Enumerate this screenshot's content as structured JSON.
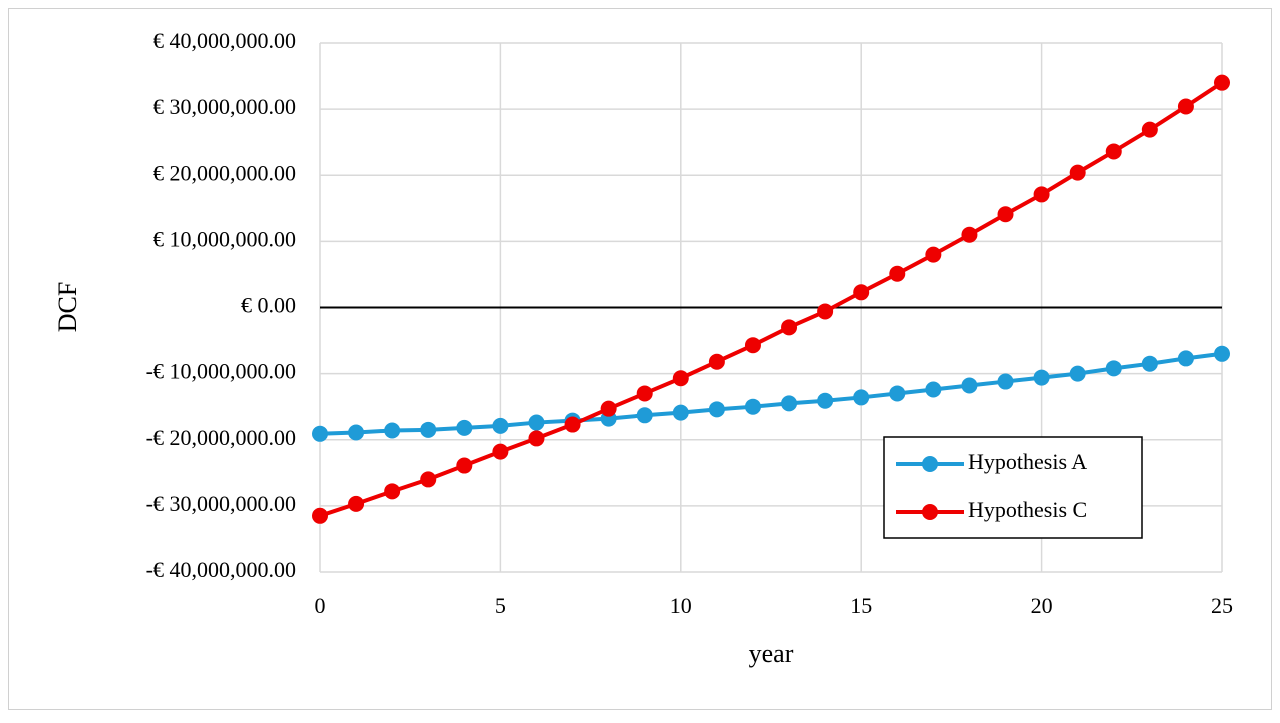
{
  "chart_data": {
    "type": "line",
    "y_label": "DCF",
    "x_label": "year",
    "x": [
      0,
      1,
      2,
      3,
      4,
      5,
      6,
      7,
      8,
      9,
      10,
      11,
      12,
      13,
      14,
      15,
      16,
      17,
      18,
      19,
      20,
      21,
      22,
      23,
      24,
      25
    ],
    "series": [
      {
        "name": "Hypothesis A",
        "color": "#1f9bd7",
        "values": [
          -19100000,
          -18900000,
          -18600000,
          -18500000,
          -18200000,
          -17900000,
          -17400000,
          -17100000,
          -16800000,
          -16300000,
          -15900000,
          -15400000,
          -15000000,
          -14500000,
          -14100000,
          -13600000,
          -13000000,
          -12400000,
          -11800000,
          -11200000,
          -10600000,
          -10000000,
          -9200000,
          -8500000,
          -7700000,
          -7000000
        ]
      },
      {
        "name": "Hypothesis C",
        "color": "#ee0000",
        "values": [
          -31500000,
          -29700000,
          -27800000,
          -26000000,
          -23900000,
          -21800000,
          -19800000,
          -17700000,
          -15300000,
          -13000000,
          -10700000,
          -8200000,
          -5700000,
          -3000000,
          -600000,
          2300000,
          5100000,
          8000000,
          11000000,
          14100000,
          17100000,
          20400000,
          23600000,
          26900000,
          30400000,
          34000000
        ]
      }
    ],
    "xlim": [
      0,
      25
    ],
    "xticks": [
      0,
      5,
      10,
      15,
      20,
      25
    ],
    "ylim": [
      -40000000,
      40000000
    ],
    "yticks": [
      {
        "value": -40000000,
        "label": "-€ 40,000,000.00"
      },
      {
        "value": -30000000,
        "label": "-€ 30,000,000.00"
      },
      {
        "value": -20000000,
        "label": "-€ 20,000,000.00"
      },
      {
        "value": -10000000,
        "label": "-€ 10,000,000.00"
      },
      {
        "value": 0,
        "label": "€ 0.00"
      },
      {
        "value": 10000000,
        "label": "€ 10,000,000.00"
      },
      {
        "value": 20000000,
        "label": "€ 20,000,000.00"
      },
      {
        "value": 30000000,
        "label": "€ 30,000,000.00"
      },
      {
        "value": 40000000,
        "label": "€ 40,000,000.00"
      }
    ],
    "grid": true,
    "legend": "lower right"
  }
}
